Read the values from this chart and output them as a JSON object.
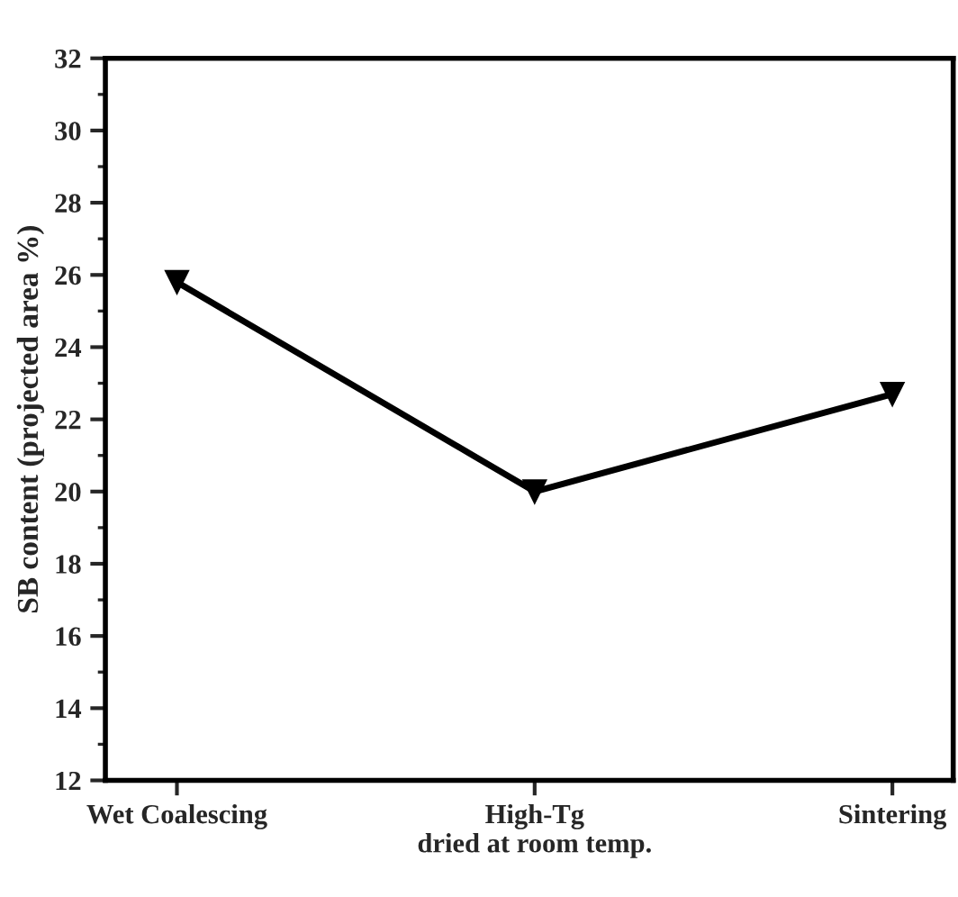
{
  "chart_data": {
    "type": "line",
    "ylabel": "SB content (projected area %)",
    "categories": [
      "Wet Coalescing",
      "High-Tg\ndried at room temp.",
      "Sintering"
    ],
    "series": [
      {
        "color": "#000000",
        "values": [
          25.8,
          20.0,
          22.7
        ]
      }
    ],
    "ylim": [
      12,
      32
    ],
    "yticks": [
      12,
      14,
      16,
      18,
      20,
      22,
      24,
      26,
      28,
      30,
      32
    ],
    "marker": "triangle",
    "line_style": "solid",
    "grid": false,
    "legend": false
  }
}
